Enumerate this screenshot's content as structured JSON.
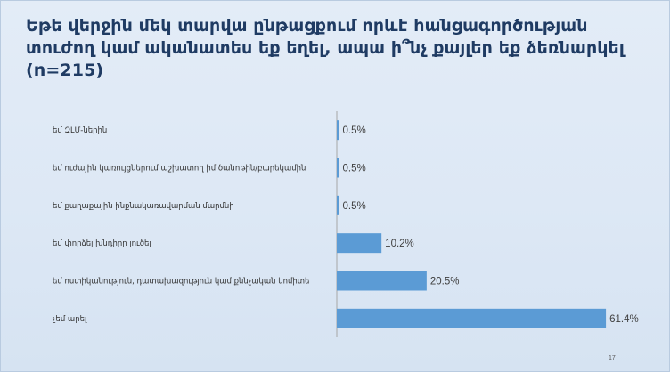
{
  "slide": {
    "title": "Եթե վերջին մեկ տարվա ընթացքում որևէ հանցագործության տուժող կամ ականատես եք եղել, ապա ի՞նչ քայլեր եք ձեռնարկել (n=215)",
    "page_number": "17"
  },
  "chart_data": {
    "type": "bar",
    "orientation": "horizontal",
    "title": "Եթե վերջին մեկ տարվա ընթացքում որևէ հանցագործության տուժող կամ ականատես եք եղել, ապա ի՞նչ քայլեր եք ձեռնարկել (n=215)",
    "categories": [
      "եմ ԶԼՄ-ներին",
      "եմ ուժային կառույցներում աշխատող իմ ծանոթին/բարեկամին",
      "եմ քաղաքային ինքնակառավարման մարմնի",
      "եմ փորձել խնդիրը լուծել",
      "եմ ոստիկանություն, դատախազություն կամ քննչական կոմիտե",
      "չեմ արել"
    ],
    "values": [
      0.5,
      0.5,
      0.5,
      10.2,
      20.5,
      61.4
    ],
    "value_labels": [
      "0.5%",
      "0.5%",
      "0.5%",
      "10.2%",
      "20.5%",
      "61.4%"
    ],
    "unit": "%",
    "xlim": [
      0,
      70
    ],
    "grid": false,
    "legend": "none",
    "bar_color": "#5b9bd5"
  }
}
